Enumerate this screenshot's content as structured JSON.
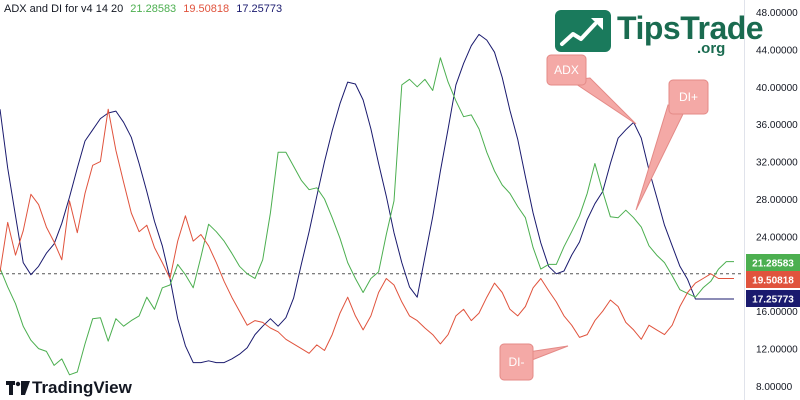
{
  "header": {
    "title": "ADX and DI for v4 14 20",
    "values": [
      "21.28583",
      "19.50818",
      "17.25773"
    ],
    "value_colors": [
      "#4caf50",
      "#e0533d",
      "#1a1a6e"
    ]
  },
  "logo": {
    "main": "TipsTrade",
    "sub": ".org",
    "icon": "trending-up-icon"
  },
  "branding": {
    "text": "TradingView",
    "icon": "tradingview-logo-icon"
  },
  "callouts": [
    "ADX",
    "DI+",
    "DI-"
  ],
  "chart_data": {
    "type": "line",
    "title": "ADX and DI for v4 14 20",
    "ylim": [
      8,
      48
    ],
    "yticks": [
      "48.00000",
      "44.00000",
      "40.00000",
      "36.00000",
      "32.00000",
      "28.00000",
      "24.00000",
      "16.00000",
      "12.00000",
      "8.00000"
    ],
    "ytick_values": [
      48,
      44,
      40,
      36,
      32,
      28,
      24,
      16,
      12,
      8
    ],
    "reference_line": 20,
    "n_points": 96,
    "series": [
      {
        "color": "#1a1a6e",
        "last_value": "17.25773",
        "values": [
          37.6,
          31.3,
          26.2,
          21.2,
          19.9,
          20.8,
          22.2,
          23.2,
          25.4,
          28.2,
          31.3,
          34.2,
          35.4,
          36.6,
          37.2,
          37.4,
          36.2,
          34.6,
          31.8,
          28.8,
          25.6,
          23.0,
          19.5,
          15.2,
          12.3,
          10.5,
          10.5,
          10.7,
          10.5,
          10.5,
          10.9,
          11.4,
          12.1,
          13.5,
          14.4,
          15.2,
          14.4,
          15.3,
          17.4,
          21.0,
          24.5,
          28.3,
          32.0,
          35.3,
          38.2,
          40.5,
          40.3,
          38.6,
          35.5,
          31.8,
          28.3,
          24.4,
          21.2,
          18.6,
          17.5,
          21.8,
          26.1,
          31.0,
          35.5,
          40.2,
          42.5,
          44.4,
          45.6,
          45.0,
          43.7,
          41.0,
          37.5,
          34.4,
          30.4,
          26.5,
          23.3,
          20.8,
          20.0,
          20.3,
          22.0,
          23.4,
          25.8,
          27.5,
          28.8,
          31.8,
          34.5,
          35.4,
          36.2,
          34.5,
          31.1,
          28.2,
          25.2,
          23.0,
          20.8,
          19.4,
          17.3,
          17.3,
          17.3,
          17.3,
          17.3,
          17.3
        ]
      },
      {
        "color": "#4caf50",
        "last_value": "21.28583",
        "values": [
          20.6,
          18.6,
          16.8,
          14.4,
          12.9,
          12.0,
          11.7,
          10.2,
          10.9,
          9.2,
          9.5,
          12.5,
          15.2,
          15.3,
          12.8,
          15.2,
          14.4,
          15.0,
          15.5,
          17.5,
          16.2,
          18.5,
          18.8,
          21.0,
          19.9,
          18.5,
          21.8,
          25.3,
          24.5,
          23.5,
          22.2,
          20.8,
          20.0,
          19.5,
          21.5,
          26.5,
          33.0,
          33.0,
          31.5,
          30.0,
          29.0,
          29.2,
          28.0,
          26.0,
          23.8,
          21.2,
          19.5,
          18.0,
          19.5,
          20.2,
          24.2,
          27.8,
          40.2,
          40.8,
          40.0,
          40.8,
          39.6,
          43.1,
          40.5,
          38.5,
          36.8,
          37.0,
          35.5,
          33.0,
          31.0,
          29.5,
          28.6,
          27.2,
          26.0,
          22.8,
          20.5,
          21.0,
          21.0,
          22.9,
          24.5,
          26.2,
          28.6,
          31.8,
          28.8,
          26.1,
          26.0,
          26.8,
          26.0,
          25.0,
          23.0,
          22.0,
          21.2,
          19.8,
          18.3,
          17.9,
          17.5,
          18.5,
          19.2,
          20.5,
          21.3,
          21.3
        ]
      },
      {
        "color": "#e0533d",
        "last_value": "19.50818",
        "values": [
          20.2,
          25.5,
          22.0,
          24.6,
          28.5,
          27.4,
          25.0,
          23.4,
          21.5,
          27.8,
          24.4,
          28.6,
          31.6,
          32.0,
          37.6,
          33.2,
          29.8,
          26.5,
          24.5,
          25.2,
          22.8,
          21.2,
          19.5,
          23.5,
          26.2,
          23.5,
          24.2,
          23.0,
          21.2,
          19.2,
          17.5,
          16.0,
          14.5,
          15.0,
          14.8,
          14.2,
          13.8,
          13.0,
          12.5,
          12.0,
          11.5,
          12.4,
          11.8,
          13.5,
          15.8,
          17.5,
          15.5,
          14.0,
          15.5,
          18.0,
          19.5,
          18.8,
          17.0,
          15.5,
          15.0,
          14.2,
          13.5,
          12.5,
          13.5,
          15.5,
          16.2,
          15.0,
          15.8,
          17.5,
          19.0,
          18.0,
          16.2,
          15.5,
          16.5,
          18.5,
          19.5,
          18.2,
          17.0,
          15.5,
          14.5,
          13.2,
          13.5,
          15.0,
          16.0,
          17.2,
          16.5,
          14.8,
          14.0,
          13.0,
          14.5,
          14.0,
          13.5,
          14.5,
          16.5,
          18.0,
          19.0,
          19.5,
          20.0,
          19.5,
          19.5,
          19.5
        ]
      }
    ]
  }
}
